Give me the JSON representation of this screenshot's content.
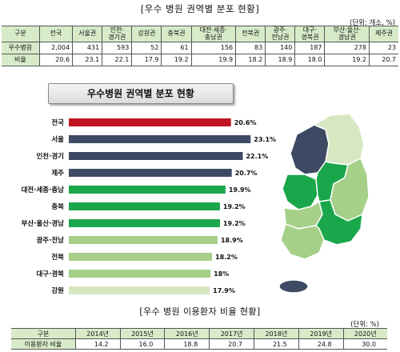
{
  "top_table": {
    "title": "[우수 병원 권역별 분포 현황]",
    "unit": "(단위: 개소, %)",
    "headers": [
      "구분",
      "전국",
      "서울권",
      "인천·\n경기권",
      "강원권",
      "충북권",
      "대전·세종·\n충남권",
      "전북권",
      "광주·\n전남권",
      "대구·\n경북권",
      "부산·울산·\n경남권",
      "제주권"
    ],
    "rows": [
      {
        "label": "우수병원",
        "values": [
          "2,004",
          "431",
          "593",
          "52",
          "61",
          "156",
          "83",
          "140",
          "187",
          "278",
          "23"
        ]
      },
      {
        "label": "비율",
        "values": [
          "20.6",
          "23.1",
          "22.1",
          "17.9",
          "19.2",
          "19.9",
          "18.2",
          "18.9",
          "18.0",
          "19.2",
          "20.7"
        ]
      }
    ]
  },
  "chart_data": {
    "type": "bar",
    "orientation": "horizontal",
    "title": "우수병원 권역별 분포 현황",
    "categories": [
      "전국",
      "서울",
      "인천·경기",
      "제주",
      "대전·세종·충남",
      "충북",
      "부산·울산·경남",
      "광주·전남",
      "전북",
      "대구·경북",
      "강원"
    ],
    "values": [
      20.6,
      23.1,
      22.1,
      20.7,
      19.9,
      19.2,
      19.2,
      18.9,
      18.2,
      18.0,
      17.9
    ],
    "value_labels": [
      "20.6%",
      "23.1%",
      "22.1%",
      "20.7%",
      "19.9%",
      "19.2%",
      "19.2%",
      "18.9%",
      "18.2%",
      "18%",
      "17.9%"
    ],
    "colors": [
      "#c0141e",
      "#3e4a63",
      "#3e4a63",
      "#3e4a63",
      "#1aa64a",
      "#1aa64a",
      "#1aa64a",
      "#a6cf88",
      "#a6cf88",
      "#a6cf88",
      "#d7e7c2"
    ],
    "xlim": [
      0,
      25
    ],
    "grid": false,
    "legend": "none"
  },
  "map": {
    "tiers": {
      "dark": "#3e4a63",
      "green": "#1aa64a",
      "light": "#a6cf88",
      "pale": "#d7e7c2"
    }
  },
  "bottom_table": {
    "title": "[우수 병원 이용환자 비율 현황]",
    "unit": "(단위: %)",
    "headers": [
      "구분",
      "2014년",
      "2015년",
      "2016년",
      "2017년",
      "2018년",
      "2019년",
      "2020년"
    ],
    "row": {
      "label": "이용환자 비율",
      "values": [
        "14.2",
        "16.0",
        "18.8",
        "20.7",
        "21.5",
        "24.8",
        "30.0"
      ]
    }
  }
}
